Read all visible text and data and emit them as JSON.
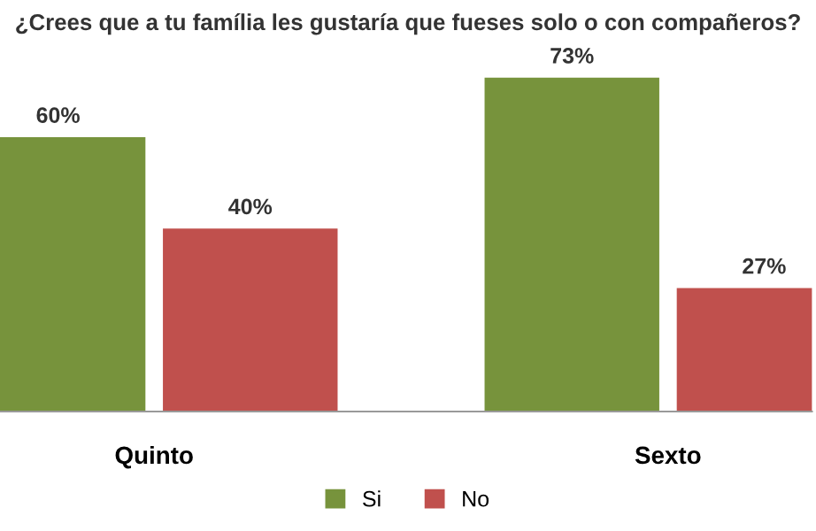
{
  "chart_data": {
    "type": "bar",
    "title": "¿Crees que a tu família les gustaría que fueses solo o con compañeros?",
    "categories": [
      "Quinto",
      "Sexto"
    ],
    "series": [
      {
        "name": "Si",
        "color": "#77933c",
        "values": [
          60,
          73
        ],
        "value_labels": [
          "60%",
          "73%"
        ]
      },
      {
        "name": "No",
        "color": "#c0504d",
        "values": [
          40,
          27
        ],
        "value_labels": [
          "40%",
          "27%"
        ]
      }
    ],
    "legend": "bottom",
    "grid": false
  }
}
